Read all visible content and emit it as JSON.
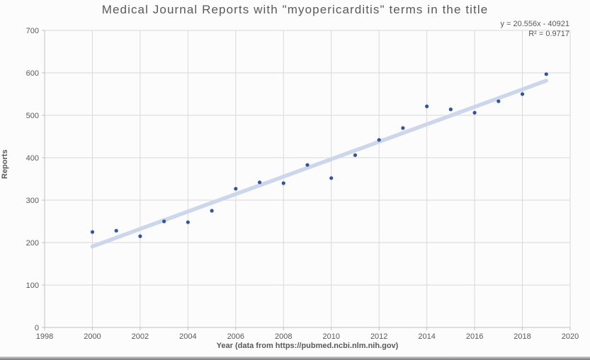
{
  "chart_data": {
    "type": "scatter",
    "title": "Medical Journal Reports with \"myopericarditis\" terms in the title",
    "xlabel": "Year (data from https://pubmed.ncbi.nlm.nih.gov)",
    "ylabel": "Reports",
    "xlim": [
      1998,
      2020
    ],
    "ylim": [
      0,
      700
    ],
    "x_tick_step": 2,
    "y_tick_step": 100,
    "grid": true,
    "legend": "none",
    "x": [
      2000,
      2001,
      2002,
      2003,
      2004,
      2005,
      2006,
      2007,
      2008,
      2009,
      2010,
      2011,
      2012,
      2013,
      2014,
      2015,
      2016,
      2017,
      2018,
      2019
    ],
    "y": [
      225,
      228,
      215,
      250,
      248,
      275,
      327,
      342,
      340,
      383,
      352,
      406,
      442,
      470,
      521,
      514,
      506,
      533,
      550,
      597
    ],
    "trendline": {
      "equation_label": "y = 20.556x - 40921",
      "r2_label": "R² = 0.9717",
      "slope": 20.556,
      "intercept": -40921,
      "x_start": 2000,
      "x_end": 2019
    },
    "colors": {
      "marker": "#34549c",
      "trendline": "#ccd7eb",
      "gridline": "#d9d9d9",
      "axis_line": "#bfbfbf",
      "text": "#595959",
      "background": "#fcfcfc"
    }
  }
}
